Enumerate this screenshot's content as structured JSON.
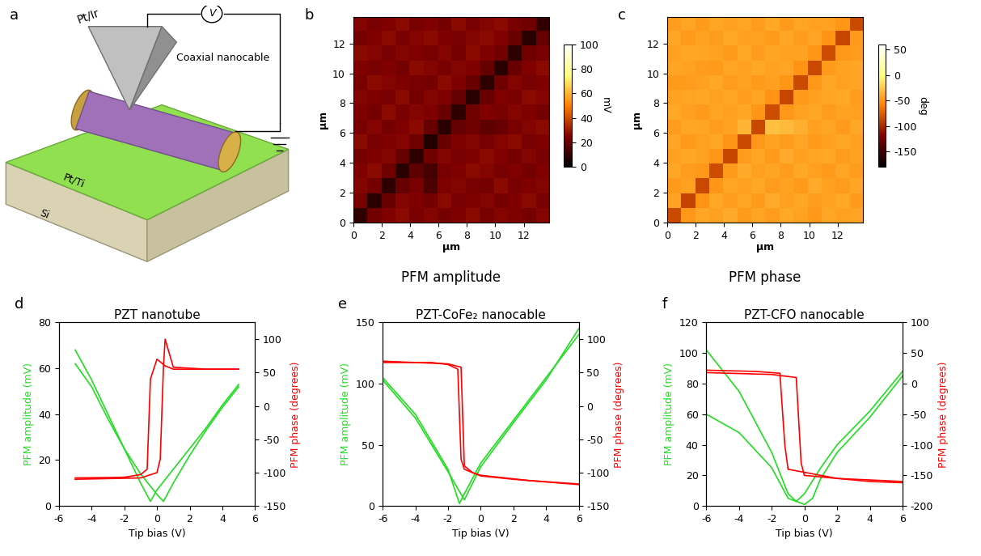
{
  "schematic": {
    "panel": "a",
    "tip": "Pt/Ir",
    "cable": "Coaxial nanocable",
    "meter": "V",
    "electrode": "Pt/Ti",
    "substrate": "Si"
  },
  "chart_data": [
    {
      "type": "heatmap",
      "panel": "b",
      "title": "PFM amplitude",
      "xlabel": "µm",
      "ylabel": "µm",
      "xlim": [
        0,
        13.8
      ],
      "ylim": [
        0,
        13.8
      ],
      "xticks": [
        0,
        2,
        4,
        6,
        8,
        10,
        12
      ],
      "yticks": [
        0,
        2,
        4,
        6,
        8,
        10,
        12
      ],
      "colorbar": {
        "label": "mV",
        "lim": [
          0,
          100
        ],
        "ticks": [
          0,
          20,
          40,
          60,
          80,
          100
        ]
      },
      "cells": [
        [
          9,
          22,
          25,
          27,
          24,
          26,
          23,
          25,
          27,
          24,
          26,
          25,
          23,
          26
        ],
        [
          24,
          8,
          21,
          26,
          25,
          23,
          27,
          24,
          25,
          26,
          23,
          25,
          27,
          24
        ],
        [
          26,
          23,
          9,
          20,
          24,
          15,
          25,
          26,
          24,
          23,
          27,
          24,
          25,
          26
        ],
        [
          25,
          27,
          22,
          8,
          18,
          14,
          24,
          25,
          27,
          26,
          24,
          25,
          23,
          25
        ],
        [
          23,
          25,
          26,
          21,
          9,
          22,
          26,
          24,
          25,
          27,
          25,
          23,
          26,
          24
        ],
        [
          27,
          24,
          25,
          26,
          22,
          7,
          21,
          25,
          26,
          24,
          26,
          27,
          24,
          25
        ],
        [
          24,
          26,
          23,
          25,
          27,
          20,
          8,
          20,
          22,
          18,
          20,
          24,
          26,
          27
        ],
        [
          25,
          23,
          27,
          24,
          26,
          25,
          21,
          9,
          22,
          25,
          24,
          26,
          25,
          23
        ],
        [
          26,
          25,
          24,
          27,
          23,
          26,
          25,
          20,
          8,
          21,
          25,
          24,
          27,
          26
        ],
        [
          24,
          27,
          26,
          25,
          24,
          23,
          27,
          25,
          21,
          9,
          22,
          26,
          24,
          25
        ],
        [
          25,
          24,
          25,
          23,
          27,
          26,
          24,
          26,
          25,
          20,
          8,
          21,
          25,
          27
        ],
        [
          27,
          26,
          24,
          26,
          25,
          24,
          26,
          23,
          27,
          25,
          22,
          9,
          22,
          24
        ],
        [
          23,
          25,
          27,
          24,
          26,
          27,
          25,
          24,
          26,
          27,
          25,
          21,
          8,
          20
        ],
        [
          26,
          24,
          25,
          27,
          24,
          25,
          23,
          27,
          24,
          26,
          27,
          24,
          22,
          10
        ]
      ]
    },
    {
      "type": "heatmap",
      "panel": "c",
      "title": "PFM phase",
      "xlabel": "µm",
      "ylabel": "µm",
      "xlim": [
        0,
        13.8
      ],
      "ylim": [
        0,
        13.8
      ],
      "xticks": [
        0,
        2,
        4,
        6,
        8,
        10,
        12
      ],
      "yticks": [
        0,
        2,
        4,
        6,
        8,
        10,
        12
      ],
      "colorbar": {
        "label": "deg",
        "lim": [
          -180,
          60
        ],
        "ticks": [
          -150,
          -100,
          -50,
          0,
          50
        ]
      },
      "cells": [
        [
          -85,
          -48,
          -42,
          -45,
          -40,
          -47,
          -43,
          -46,
          -41,
          -44,
          -48,
          -42,
          -45,
          -43
        ],
        [
          -44,
          -88,
          -50,
          -41,
          -46,
          -43,
          -47,
          -40,
          -45,
          -42,
          -46,
          -44,
          -41,
          -47
        ],
        [
          -47,
          -45,
          -86,
          -49,
          -43,
          -45,
          -41,
          -46,
          -44,
          -47,
          -40,
          -45,
          -46,
          -42
        ],
        [
          -42,
          -46,
          -48,
          -84,
          -47,
          -40,
          -45,
          -43,
          -46,
          -41,
          -45,
          -47,
          -43,
          -46
        ],
        [
          -45,
          -41,
          -44,
          -49,
          -87,
          -46,
          -42,
          -47,
          -40,
          -45,
          -43,
          -41,
          -46,
          -44
        ],
        [
          -43,
          -47,
          -45,
          -42,
          -50,
          -85,
          -48,
          -44,
          -46,
          -43,
          -47,
          -45,
          -42,
          -45
        ],
        [
          -46,
          -42,
          -43,
          -46,
          -44,
          -35,
          -86,
          -30,
          -32,
          -38,
          -45,
          -43,
          -47,
          -41
        ],
        [
          -41,
          -45,
          -47,
          -43,
          -45,
          -42,
          -49,
          -84,
          -48,
          -44,
          -42,
          -46,
          -44,
          -45
        ],
        [
          -44,
          -43,
          -41,
          -45,
          -42,
          -46,
          -43,
          -50,
          -87,
          -47,
          -45,
          -43,
          -41,
          -46
        ],
        [
          -47,
          -46,
          -45,
          -41,
          -46,
          -44,
          -47,
          -45,
          -49,
          -85,
          -48,
          -42,
          -45,
          -43
        ],
        [
          -43,
          -44,
          -46,
          -47,
          -43,
          -45,
          -41,
          -44,
          -43,
          -50,
          -86,
          -47,
          -44,
          -42
        ],
        [
          -45,
          -42,
          -43,
          -44,
          -47,
          -41,
          -46,
          -43,
          -45,
          -44,
          -49,
          -84,
          -48,
          -46
        ],
        [
          -42,
          -47,
          -44,
          -46,
          -41,
          -45,
          -44,
          -47,
          -42,
          -46,
          -43,
          -50,
          -87,
          -47
        ],
        [
          -46,
          -43,
          -47,
          -42,
          -45,
          -43,
          -46,
          -41,
          -47,
          -43,
          -45,
          -44,
          -49,
          -85
        ]
      ]
    },
    {
      "type": "line",
      "panel": "d",
      "title": "PZT nanotube",
      "xlabel": "Tip bias (V)",
      "ylabel": "PFM amplitude (mV)",
      "y2label": "PFM phase (degrees)",
      "xlim": [
        -6,
        6
      ],
      "xticks": [
        -6,
        -4,
        -2,
        0,
        2,
        4,
        6
      ],
      "ylim": [
        0,
        80
      ],
      "yticks": [
        0,
        20,
        40,
        60,
        80
      ],
      "y2lim": [
        -150,
        125
      ],
      "y2ticks": [
        -150,
        -100,
        -50,
        0,
        50,
        100
      ],
      "series": [
        {
          "axis": "y",
          "color": "#22dd22",
          "x": [
            -5,
            -4,
            -3,
            -2,
            -1,
            -0.4,
            0,
            1,
            2,
            3,
            4,
            5
          ],
          "values": [
            68,
            55,
            40,
            25,
            10,
            2,
            7,
            16,
            25,
            34,
            44,
            53
          ]
        },
        {
          "axis": "y",
          "color": "#22dd22",
          "x": [
            -5,
            -4,
            -3,
            -2,
            -1,
            0,
            0.4,
            1,
            2,
            3,
            4,
            5
          ],
          "values": [
            62,
            52,
            38,
            25,
            14,
            5,
            2,
            10,
            22,
            33,
            43,
            52
          ]
        },
        {
          "axis": "y2",
          "color": "#ff0000",
          "x": [
            -5,
            -2,
            -1,
            -0.6,
            -0.4,
            0,
            0.5,
            1,
            3,
            5
          ],
          "values": [
            -108,
            -107,
            -103,
            -95,
            40,
            70,
            60,
            55,
            55,
            55
          ]
        },
        {
          "axis": "y2",
          "color": "#ff0000",
          "x": [
            -5,
            -1,
            0,
            0.2,
            0.4,
            0.5,
            1,
            3,
            5
          ],
          "values": [
            -110,
            -108,
            -100,
            -80,
            60,
            100,
            58,
            55,
            55
          ]
        }
      ]
    },
    {
      "type": "line",
      "panel": "e",
      "title": "PZT-CoFe₂ nanocable",
      "xlabel": "Tip bias (V)",
      "ylabel": "PFM amplitude (mV)",
      "y2label": "PFM phase (degrees)",
      "xlim": [
        -6,
        6
      ],
      "xticks": [
        -6,
        -4,
        -2,
        0,
        2,
        4,
        6
      ],
      "ylim": [
        0,
        150
      ],
      "yticks": [
        0,
        50,
        100,
        150
      ],
      "y2lim": [
        -150,
        125
      ],
      "y2ticks": [
        -150,
        -100,
        -50,
        0,
        50,
        100
      ],
      "series": [
        {
          "axis": "y",
          "color": "#22dd22",
          "x": [
            -6,
            -4,
            -2,
            -1.3,
            -1,
            0,
            2,
            4,
            6
          ],
          "values": [
            105,
            75,
            30,
            2,
            10,
            35,
            70,
            105,
            140
          ]
        },
        {
          "axis": "y",
          "color": "#22dd22",
          "x": [
            -6,
            -4,
            -2,
            -1,
            0,
            2,
            4,
            6
          ],
          "values": [
            103,
            72,
            28,
            5,
            32,
            68,
            103,
            145
          ]
        },
        {
          "axis": "y2",
          "color": "#ff0000",
          "x": [
            -6,
            -3,
            -2,
            -1.4,
            -1.2,
            -1,
            0,
            2,
            4,
            6
          ],
          "values": [
            65,
            65,
            62,
            55,
            -80,
            -95,
            -105,
            -110,
            -114,
            -118
          ]
        },
        {
          "axis": "y2",
          "color": "#ff0000",
          "x": [
            -6,
            -2,
            -1.2,
            -1,
            -0.5,
            0,
            3,
            6
          ],
          "values": [
            67,
            63,
            58,
            -90,
            -100,
            -104,
            -112,
            -117
          ]
        }
      ]
    },
    {
      "type": "line",
      "panel": "f",
      "title": "PZT-CFO nanocable",
      "xlabel": "Tip bias (V)",
      "ylabel": "PFM amplitude (mV)",
      "y2label": "PFM phase (degrees)",
      "xlim": [
        -6,
        6
      ],
      "xticks": [
        -6,
        -4,
        -2,
        0,
        2,
        4,
        6
      ],
      "ylim": [
        0,
        120
      ],
      "yticks": [
        0,
        20,
        40,
        60,
        80,
        100,
        120
      ],
      "y2lim": [
        -200,
        100
      ],
      "y2ticks": [
        -200,
        -150,
        -100,
        -50,
        0,
        50,
        100
      ],
      "series": [
        {
          "axis": "y",
          "color": "#22dd22",
          "x": [
            -6,
            -4,
            -2,
            -1,
            -0.5,
            0,
            1,
            2,
            4,
            6
          ],
          "values": [
            102,
            75,
            35,
            8,
            3,
            8,
            25,
            40,
            62,
            88
          ]
        },
        {
          "axis": "y",
          "color": "#22dd22",
          "x": [
            -6,
            -4,
            -2,
            -1,
            0,
            0.5,
            1,
            2,
            4,
            6
          ],
          "values": [
            60,
            48,
            25,
            5,
            1,
            5,
            18,
            35,
            58,
            85
          ]
        },
        {
          "axis": "y2",
          "color": "#ff0000",
          "x": [
            -6,
            -3,
            -1.5,
            -1.2,
            -1,
            0,
            2,
            4,
            6
          ],
          "values": [
            22,
            20,
            17,
            -100,
            -140,
            -145,
            -155,
            -160,
            -162
          ]
        },
        {
          "axis": "y2",
          "color": "#ff0000",
          "x": [
            -6,
            -2,
            -0.5,
            -0.2,
            0,
            2,
            6
          ],
          "values": [
            18,
            15,
            10,
            -130,
            -150,
            -155,
            -160
          ]
        }
      ]
    }
  ]
}
